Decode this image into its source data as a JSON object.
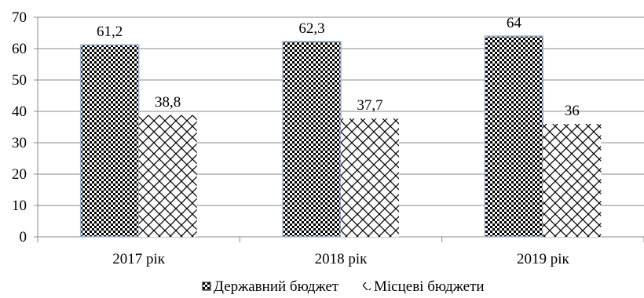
{
  "chart_data": {
    "type": "bar",
    "categories": [
      "2017 рік",
      "2018 рік",
      "2019 рік"
    ],
    "series": [
      {
        "name": "Державний бюджет",
        "values": [
          61.2,
          62.3,
          64
        ],
        "labels": [
          "61,2",
          "62,3",
          "64"
        ]
      },
      {
        "name": "Місцеві бюджети",
        "values": [
          38.8,
          37.7,
          36
        ],
        "labels": [
          "38,8",
          "37,7",
          "36"
        ]
      }
    ],
    "ylim": [
      0,
      70
    ],
    "yticks": [
      0,
      10,
      20,
      30,
      40,
      50,
      60,
      70
    ],
    "grid": true,
    "legend": "bottom-center",
    "title": "",
    "xlabel": "",
    "ylabel": ""
  }
}
